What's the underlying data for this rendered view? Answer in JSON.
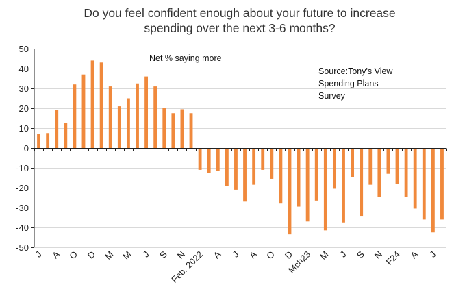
{
  "chart_data": {
    "type": "bar",
    "title": [
      "Do you feel confident enough about your future to increase",
      "spending over the next 3-6 months?"
    ],
    "annotation": "Net % saying more",
    "source_lines": [
      "Source:Tony's View",
      "Spending Plans",
      "Survey"
    ],
    "bar_color": "#f0893c",
    "ylim": [
      -50,
      50
    ],
    "yticks": [
      50,
      40,
      30,
      20,
      10,
      0,
      -10,
      -20,
      -30,
      -40,
      -50
    ],
    "values": [
      7,
      7.5,
      19,
      12.5,
      32,
      37,
      44,
      43,
      31,
      21,
      25,
      32.5,
      36,
      31,
      20,
      17.5,
      19.5,
      17.5,
      -11,
      -12.5,
      -11.5,
      -19,
      -21,
      -27,
      -18.5,
      -11,
      -15.5,
      -28,
      -43.5,
      -29.5,
      -37,
      -26.5,
      -41.5,
      -20.5,
      -37.5,
      -14.5,
      -34.5,
      -18.5,
      -24.5,
      -13,
      -18,
      -24.5,
      -30.5,
      -36,
      -42.5,
      -36
    ],
    "x_labels": [
      {
        "index": 0,
        "label": "J"
      },
      {
        "index": 2,
        "label": "A"
      },
      {
        "index": 4,
        "label": "O"
      },
      {
        "index": 6,
        "label": "D"
      },
      {
        "index": 8,
        "label": "M"
      },
      {
        "index": 10,
        "label": "M"
      },
      {
        "index": 12,
        "label": "J"
      },
      {
        "index": 14,
        "label": "S"
      },
      {
        "index": 16,
        "label": "N"
      },
      {
        "index": 18,
        "label": "Feb. 2022"
      },
      {
        "index": 20,
        "label": "A"
      },
      {
        "index": 22,
        "label": "J"
      },
      {
        "index": 24,
        "label": "A"
      },
      {
        "index": 26,
        "label": "O"
      },
      {
        "index": 28,
        "label": "D"
      },
      {
        "index": 30,
        "label": "Mch23"
      },
      {
        "index": 32,
        "label": "M"
      },
      {
        "index": 34,
        "label": "J"
      },
      {
        "index": 36,
        "label": "S"
      },
      {
        "index": 38,
        "label": "N"
      },
      {
        "index": 40,
        "label": "F24"
      },
      {
        "index": 42,
        "label": "A"
      },
      {
        "index": 44,
        "label": "J"
      }
    ]
  }
}
